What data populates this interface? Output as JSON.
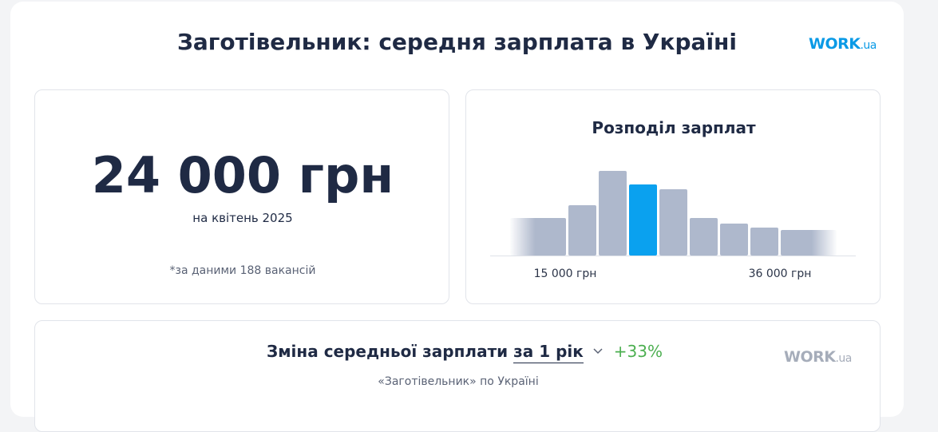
{
  "header": {
    "title": "Заготівельник: середня зарплата в Україні",
    "logo": {
      "main": "WORK",
      "suffix": ".ua"
    }
  },
  "summary": {
    "salary": "24 000 грн",
    "period": "на квітень 2025",
    "note": "*за даними 188 вакансій"
  },
  "distribution": {
    "title": "Розподіл зарплат",
    "chart_data": {
      "type": "histogram",
      "values": [
        47,
        63,
        106,
        89,
        83,
        47,
        40,
        35,
        32
      ],
      "colors": [
        "#aeb8cc",
        "#aeb8cc",
        "#aeb8cc",
        "#0aa1ef",
        "#aeb8cc",
        "#aeb8cc",
        "#aeb8cc",
        "#aeb8cc",
        "#aeb8cc"
      ],
      "tick_labels": [
        "15 000 грн",
        "36 000 грн"
      ]
    }
  },
  "change": {
    "title": "Зміна середньої зарплати",
    "period": "за 1 рік",
    "delta": "+33%",
    "subtitle": "«Заготівельник» по Україні",
    "logo": {
      "main": "WORK",
      "suffix": ".ua"
    }
  }
}
